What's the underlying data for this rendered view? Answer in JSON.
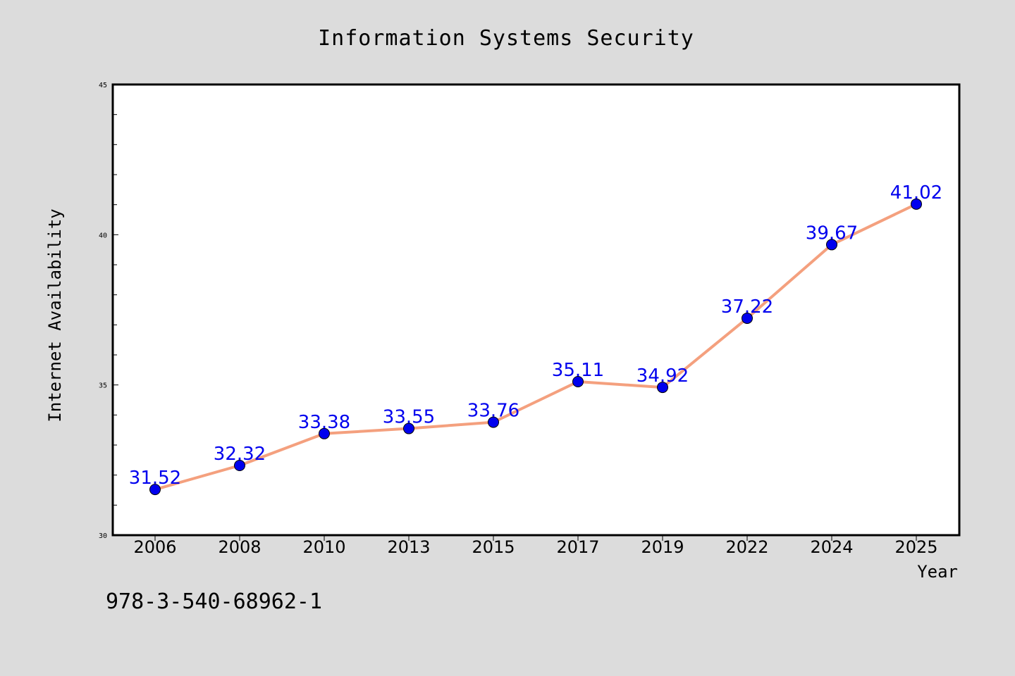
{
  "chart_data": {
    "type": "line",
    "title": "Information Systems Security",
    "xlabel": "Year",
    "ylabel": "Internet Availability",
    "categories": [
      "2006",
      "2008",
      "2010",
      "2013",
      "2015",
      "2017",
      "2019",
      "2022",
      "2024",
      "2025"
    ],
    "series": [
      {
        "values": [
          31.52,
          32.32,
          33.38,
          33.55,
          33.76,
          35.11,
          34.92,
          37.22,
          39.67,
          41.02
        ],
        "line_color": "#f4a07e",
        "marker_color": "#0000ee"
      }
    ],
    "ylim": [
      30,
      45
    ],
    "y_ticks": [
      "30",
      "35",
      "40",
      "45"
    ],
    "grid": false,
    "data_labels": [
      "31.52",
      "32.32",
      "33.38",
      "33.55",
      "33.76",
      "35.11",
      "34.92",
      "37.22",
      "39.67",
      "41.02"
    ],
    "data_label_color": "#0000ee"
  },
  "annotation": "978-3-540-68962-1",
  "colors": {
    "background": "#dcdcdc",
    "plot_background": "#ffffff"
  }
}
